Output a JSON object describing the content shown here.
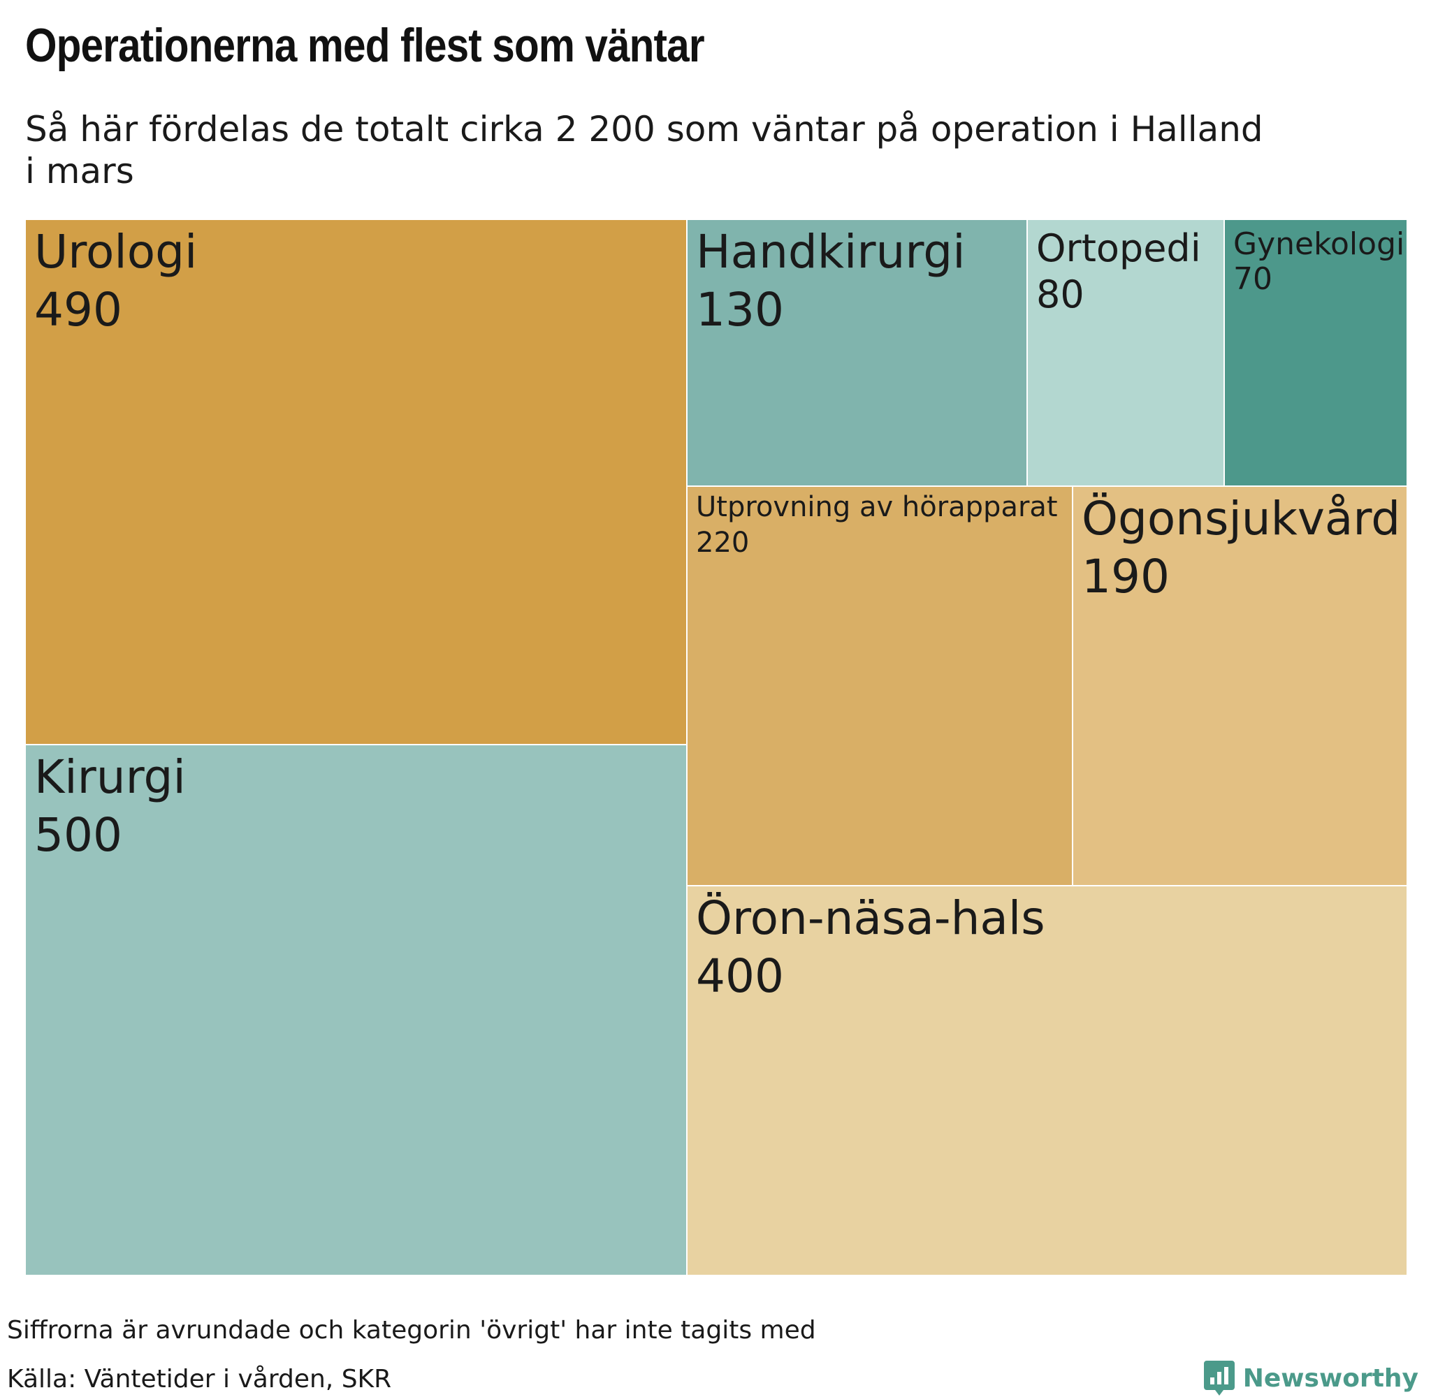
{
  "title": "Operationerna med flest som väntar",
  "subtitle": "Så här fördelas de totalt cirka 2 200 som väntar på operation i Halland i mars",
  "chart_data": {
    "type": "treemap",
    "title": "Operationerna med flest som väntar",
    "subtitle": "Så här fördelas de totalt cirka 2 200 som väntar på operation i Halland i mars",
    "items": [
      {
        "name": "Kirurgi",
        "value": 500,
        "value_label": "500",
        "color": "#98c3bd"
      },
      {
        "name": "Urologi",
        "value": 490,
        "value_label": "490",
        "color": "#d29f47"
      },
      {
        "name": "Öron-näsa-hals",
        "value": 400,
        "value_label": "400",
        "color": "#e8d2a1"
      },
      {
        "name": "Utprovning av hörapparat",
        "value": 220,
        "value_label": "220",
        "color": "#d9af66"
      },
      {
        "name": "Ögonsjukvård",
        "value": 190,
        "value_label": "190",
        "color": "#e3c083"
      },
      {
        "name": "Handkirurgi",
        "value": 130,
        "value_label": "130",
        "color": "#80b4ad"
      },
      {
        "name": "Ortopedi",
        "value": 80,
        "value_label": "80",
        "color": "#b3d7d0"
      },
      {
        "name": "Gynekologi",
        "value": 70,
        "value_label": "70",
        "color": "#4d988b"
      }
    ]
  },
  "footnote": "Siffrorna är avrundade och kategorin 'övrigt' har inte tagits med",
  "source": "Källa: Väntetider i vården, SKR",
  "brand": {
    "name": "Newsworthy",
    "icon": "bar-chart-icon",
    "color": "#4b9a8a"
  }
}
